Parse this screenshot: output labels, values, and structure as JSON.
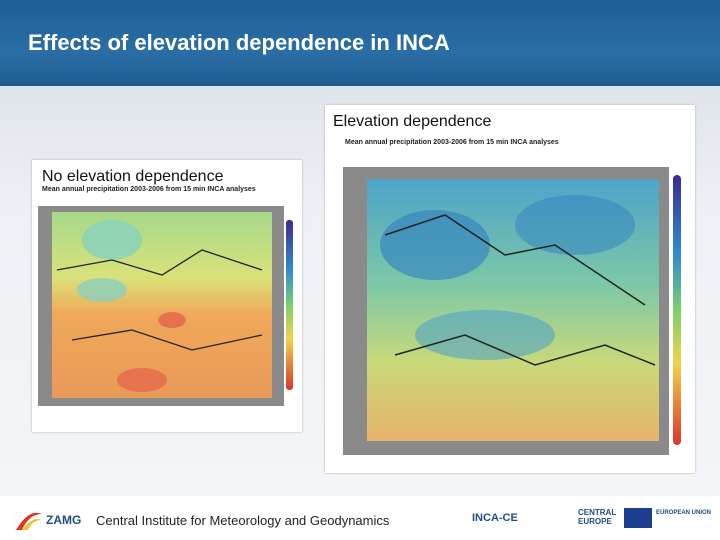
{
  "header": {
    "title": "Effects of elevation dependence in INCA"
  },
  "panels": [
    {
      "label": "Elevation dependence",
      "subtitle": "Mean annual precipitation 2003-2006 from 15 min INCA analyses"
    },
    {
      "label": "No elevation dependence",
      "subtitle": "Mean annual precipitation 2003-2006 from 15 min INCA analyses"
    }
  ],
  "footer": {
    "logo": "ZAMG",
    "org": "Central Institute for Meteorology and Geodynamics",
    "partners": [
      "INCA-CE",
      "CENTRAL EUROPE",
      "EUROPEAN UNION"
    ]
  }
}
